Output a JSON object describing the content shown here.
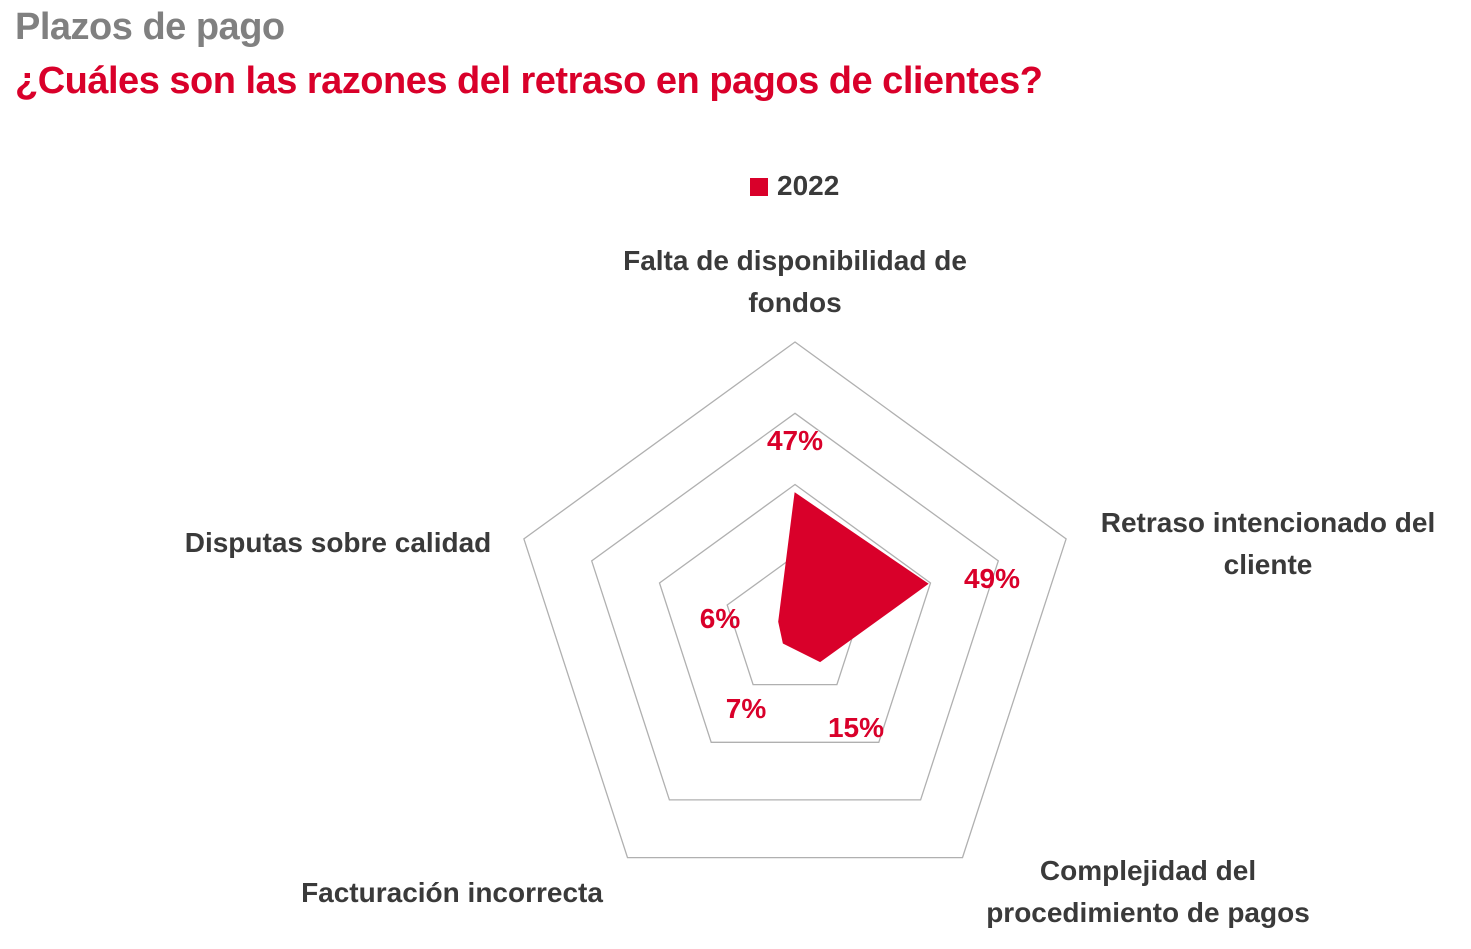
{
  "header": {
    "supertitle": "Plazos de pago",
    "title": "¿Cuáles son las razones del retraso en pagos de clientes?"
  },
  "chart_data": {
    "type": "radar",
    "title": "¿Cuáles son las razones del retraso en pagos de clientes?",
    "categories": [
      "Falta de disponibilidad de fondos",
      "Retraso intencionado del cliente",
      "Complejidad del procedimiento de pagos",
      "Facturación incorrecta",
      "Disputas sobre calidad"
    ],
    "category_lines": [
      [
        "Falta de disponibilidad de",
        "fondos"
      ],
      [
        "Retraso intencionado del",
        "cliente"
      ],
      [
        "Complejidad del",
        "procedimiento de pagos"
      ],
      [
        "Facturación incorrecta"
      ],
      [
        "Disputas sobre calidad"
      ]
    ],
    "series": [
      {
        "name": "2022",
        "values": [
          47,
          49,
          15,
          7,
          6
        ],
        "labels": [
          "47%",
          "49%",
          "15%",
          "7%",
          "6%"
        ],
        "color": "#d9002a"
      }
    ],
    "rlim": [
      0,
      100
    ],
    "rings": 4,
    "legend_position": "top-center",
    "grid": true
  },
  "colors": {
    "accent": "#d9002a",
    "grid": "#b0b0b0",
    "text": "#3a3a3a",
    "supertitle": "#808080"
  }
}
